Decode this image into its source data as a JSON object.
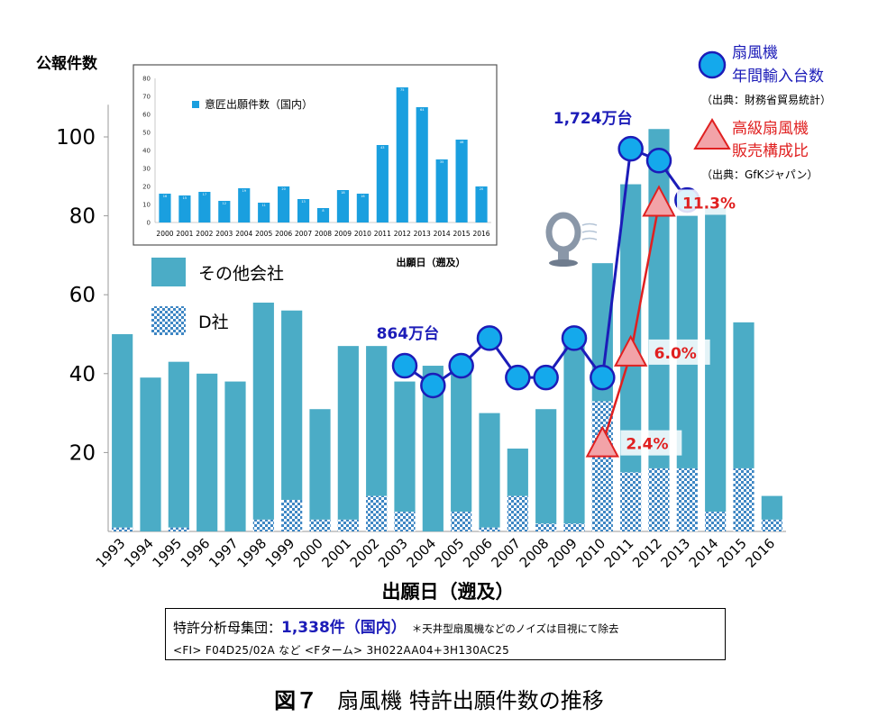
{
  "chart_data": [
    {
      "type": "bar",
      "ylabel": "公報件数",
      "xlabel": "出願日（遡及）",
      "ylim": [
        0,
        110
      ],
      "yticks": [
        20,
        40,
        60,
        80,
        100
      ],
      "categories": [
        "1993",
        "1994",
        "1995",
        "1996",
        "1997",
        "1998",
        "1999",
        "2000",
        "2001",
        "2002",
        "2003",
        "2004",
        "2005",
        "2006",
        "2007",
        "2008",
        "2009",
        "2010",
        "2011",
        "2012",
        "2013",
        "2014",
        "2015",
        "2016"
      ],
      "series": [
        {
          "name": "その他会社",
          "color": "#4bacc6",
          "values": [
            49,
            39,
            42,
            40,
            38,
            55,
            48,
            28,
            44,
            38,
            33,
            42,
            38,
            29,
            12,
            29,
            47,
            35,
            73,
            86,
            64,
            77,
            37,
            6
          ]
        },
        {
          "name": "D社",
          "color": "#3f87c4",
          "pattern": "checker",
          "values": [
            1,
            0,
            1,
            0,
            0,
            3,
            8,
            3,
            3,
            9,
            5,
            0,
            5,
            1,
            9,
            2,
            2,
            33,
            15,
            16,
            16,
            5,
            16,
            3
          ]
        }
      ],
      "legend": "left"
    },
    {
      "type": "line",
      "name": "扇風機 年間輸入台数",
      "source": "（出典：財務省貿易統計）",
      "marker": "circle",
      "color": "#1c1cb8",
      "x": [
        "2003",
        "2004",
        "2005",
        "2006",
        "2007",
        "2008",
        "2009",
        "2010",
        "2011",
        "2012",
        "2013"
      ],
      "values": [
        42,
        37,
        42,
        49,
        39,
        39,
        49,
        39,
        97,
        94,
        84
      ],
      "annotations": [
        {
          "x": "2004",
          "text": "864万台"
        },
        {
          "x": "2011",
          "text": "1,724万台"
        }
      ]
    },
    {
      "type": "line",
      "name": "高級扇風機 販売構成比",
      "source": "（出典：GfKジャパン）",
      "marker": "triangle",
      "color": "#e02020",
      "x": [
        "2010",
        "2011",
        "2012"
      ],
      "values": [
        2.4,
        6.0,
        11.3
      ],
      "plot_positions": [
        22,
        45,
        83
      ],
      "labels": [
        "2.4%",
        "6.0%",
        "11.3%"
      ]
    },
    {
      "type": "bar",
      "inset": true,
      "legend_label": "意匠出願件数（国内）",
      "xlabel": "出願日（遡及）",
      "ylim": [
        0,
        80
      ],
      "yticks": [
        0,
        10,
        20,
        30,
        40,
        50,
        60,
        70,
        80
      ],
      "categories": [
        "2000",
        "2001",
        "2002",
        "2003",
        "2004",
        "2005",
        "2006",
        "2007",
        "2008",
        "2009",
        "2010",
        "2011",
        "2012",
        "2013",
        "2014",
        "2015",
        "2016"
      ],
      "values": [
        16,
        15,
        17,
        12,
        19,
        11,
        20,
        13,
        8,
        18,
        16,
        43,
        75,
        64,
        35,
        46,
        20
      ],
      "color": "#1a9fdf"
    }
  ],
  "legend": {
    "other": "その他会社",
    "d": "D社",
    "import_line1": "扇風機",
    "import_line2": "年間輸入台数",
    "import_source": "（出典：財務省貿易統計）",
    "premium_line1": "高級扇風機",
    "premium_line2": "販売構成比",
    "premium_source": "（出典：GfKジャパン）"
  },
  "note": {
    "prefix": "特許分析母集団：",
    "highlight": "1,338件（国内）",
    "remark": "＊天井型扇風機などのノイズは目視にて除去",
    "line2": "<FI>  F04D25/02A  など  <Fターム>  3H022AA04+3H130AC25"
  },
  "caption": {
    "figure": "図７",
    "title": "扇風機 特許出願件数の推移"
  }
}
